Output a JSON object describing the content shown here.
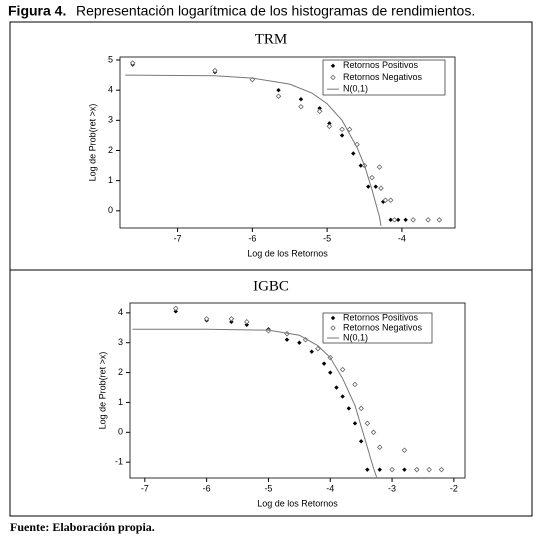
{
  "caption_label": "Figura 4.",
  "caption": "Representación logarítmica de los histogramas de rendimientos.",
  "source": "Fuente: Elaboración propia.",
  "chart_data": [
    {
      "type": "scatter",
      "title": "TRM",
      "x_label": "Log de los Retornos",
      "y_label": "Log de Prob(ret >x)",
      "xlim": [
        -7.77,
        -3.29
      ],
      "ylim": [
        -0.57,
        5.1
      ],
      "xticks": [
        -7,
        -6,
        -5,
        -4
      ],
      "yticks": [
        0,
        1,
        2,
        3,
        4,
        5
      ],
      "legend_position": "upper right",
      "series": [
        {
          "name": "Retornos Positivos",
          "color": "#000000",
          "marker": "filled",
          "x": [
            -7.6,
            -6.5,
            -5.65,
            -5.35,
            -5.1,
            -4.97,
            -4.8,
            -4.65,
            -4.55,
            -4.45,
            -4.35,
            -4.25,
            -4.15,
            -4.05,
            -3.95,
            -3.85,
            -3.65,
            -3.5
          ],
          "values": [
            4.85,
            4.6,
            4.0,
            3.7,
            3.4,
            2.9,
            2.5,
            1.9,
            1.5,
            0.8,
            0.8,
            0.3,
            -0.3,
            -0.3,
            -0.3,
            -0.3,
            -0.3,
            -0.3
          ]
        },
        {
          "name": "Retornos Negativos",
          "color": "#666666",
          "marker": "open",
          "x": [
            -7.6,
            -6.5,
            -6.0,
            -5.65,
            -5.35,
            -5.1,
            -4.97,
            -4.8,
            -4.7,
            -4.6,
            -4.5,
            -4.4,
            -4.3,
            -4.28,
            -4.22,
            -4.15,
            -4.1,
            -3.85,
            -3.65,
            -3.5
          ],
          "values": [
            4.9,
            4.65,
            4.35,
            3.8,
            3.45,
            3.3,
            2.8,
            2.7,
            2.7,
            2.2,
            1.5,
            1.1,
            1.45,
            0.75,
            0.35,
            0.35,
            -0.3,
            -0.3,
            -0.3,
            -0.3
          ]
        },
        {
          "name": "N(0,1)",
          "color": "#777777",
          "marker": "line",
          "x": [
            -7.7,
            -6.5,
            -6.0,
            -5.5,
            -5.2,
            -5.0,
            -4.8,
            -4.6,
            -4.5,
            -4.4,
            -4.3,
            -4.28
          ],
          "values": [
            4.5,
            4.48,
            4.4,
            4.2,
            3.9,
            3.55,
            3.0,
            2.1,
            1.5,
            0.7,
            -0.2,
            -0.5
          ]
        }
      ]
    },
    {
      "type": "scatter",
      "title": "IGBC",
      "x_label": "Log de los Retornos",
      "y_label": "Log de Prob(ret >x)",
      "xlim": [
        -7.24,
        -1.82
      ],
      "ylim": [
        -1.53,
        4.33
      ],
      "xticks": [
        -7,
        -6,
        -5,
        -4,
        -3,
        -2
      ],
      "yticks": [
        -1,
        0,
        1,
        2,
        3,
        4
      ],
      "legend_position": "upper right",
      "series": [
        {
          "name": "Retornos Positivos",
          "color": "#000000",
          "marker": "filled",
          "x": [
            -6.5,
            -6.0,
            -5.6,
            -5.35,
            -5.0,
            -4.7,
            -4.5,
            -4.3,
            -4.1,
            -4.0,
            -3.9,
            -3.8,
            -3.7,
            -3.6,
            -3.5,
            -3.4,
            -3.2,
            -3.0,
            -2.8,
            -2.6,
            -2.4
          ],
          "values": [
            4.05,
            3.75,
            3.7,
            3.6,
            3.45,
            3.1,
            3.0,
            2.7,
            2.3,
            2.0,
            1.5,
            1.2,
            0.8,
            0.3,
            -0.3,
            -1.25,
            -1.25,
            -1.25,
            -1.25,
            -1.25,
            -1.25
          ]
        },
        {
          "name": "Retornos Negativos",
          "color": "#666666",
          "marker": "open",
          "x": [
            -6.5,
            -6.0,
            -5.6,
            -5.35,
            -5.0,
            -4.7,
            -4.4,
            -4.2,
            -4.0,
            -3.8,
            -3.6,
            -3.5,
            -3.4,
            -3.3,
            -3.2,
            -3.0,
            -2.8,
            -2.6,
            -2.4,
            -2.2
          ],
          "values": [
            4.15,
            3.8,
            3.8,
            3.7,
            3.4,
            3.3,
            3.1,
            2.8,
            2.5,
            2.1,
            1.6,
            0.8,
            0.3,
            0,
            -0.5,
            -1.25,
            -0.6,
            -1.25,
            -1.25,
            -1.25
          ]
        },
        {
          "name": "N(0,1)",
          "color": "#777777",
          "marker": "line",
          "x": [
            -7.2,
            -6.0,
            -5.0,
            -4.5,
            -4.2,
            -4.0,
            -3.8,
            -3.6,
            -3.5,
            -3.4,
            -3.3,
            -3.25
          ],
          "values": [
            3.45,
            3.45,
            3.42,
            3.25,
            2.9,
            2.5,
            1.8,
            0.9,
            0.2,
            -0.5,
            -1.2,
            -1.5
          ]
        }
      ]
    }
  ]
}
